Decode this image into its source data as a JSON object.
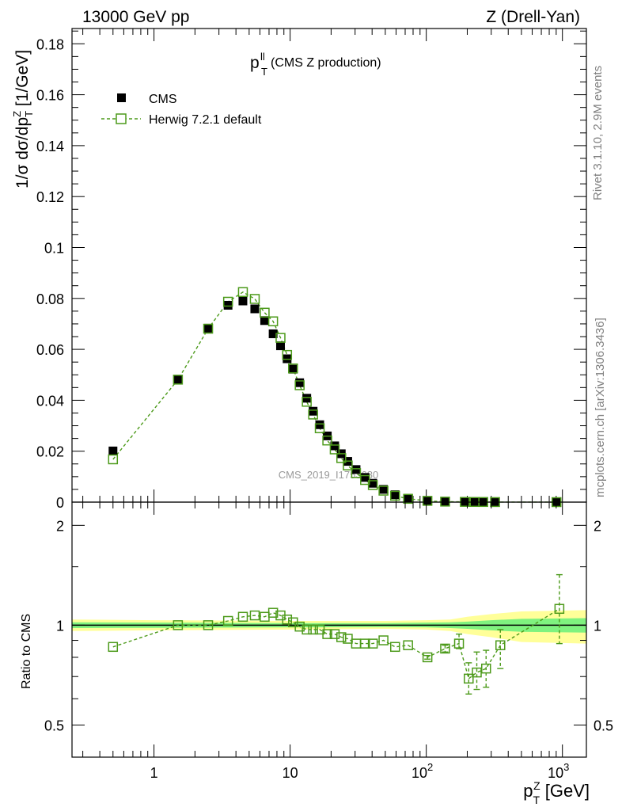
{
  "header": {
    "left": "13000 GeV pp",
    "right": "Z (Drell-Yan)"
  },
  "side_labels": {
    "rivet": "Rivet 3.1.10,  2.9M events",
    "mcplots": "mcplots.cern.ch [arXiv:1306.3436]"
  },
  "watermark": "CMS_2019_I1753680",
  "colors": {
    "data": "#000000",
    "mc": "#4c9a1a",
    "band_outer": "#ffff99",
    "band_inner": "#7ff27f",
    "axis": "#000000"
  },
  "chart_data": [
    {
      "type": "scatter",
      "title": "p_T^ll (CMS Z production)",
      "title_main": "p",
      "title_sup": "ll",
      "title_sub": "T",
      "title_rest": " (CMS Z production)",
      "ylabel": "1/σ dσ/dp_T^Z [1/GeV]",
      "ylabel_parts": {
        "main": "1/σ dσ/dp",
        "sub": "T",
        "sup": "Z",
        "unit": " [1/GeV]"
      },
      "xscale": "log",
      "xlim": [
        0.25,
        1500
      ],
      "ylim": [
        0,
        0.186
      ],
      "yticks": [
        0.02,
        0.04,
        0.06,
        0.08,
        0.1,
        0.12,
        0.14,
        0.16,
        0.18
      ],
      "ytick_labels": [
        "0.02",
        "0.04",
        "0.06",
        "0.08",
        "0.1",
        "0.12",
        "0.14",
        "0.16",
        "0.18"
      ],
      "y0_label": "0",
      "legend": {
        "position": "top-left",
        "entries": [
          "CMS",
          "Herwig 7.2.1 default"
        ]
      },
      "series": [
        {
          "name": "CMS",
          "marker": "filled-square",
          "x": [
            0.5,
            1.5,
            2.5,
            3.5,
            4.5,
            5.5,
            6.5,
            7.5,
            8.5,
            9.5,
            10.5,
            11.75,
            13.25,
            14.75,
            16.5,
            18.75,
            21.25,
            23.75,
            26.5,
            30.5,
            35.5,
            40.5,
            48.5,
            59,
            73.5,
            102,
            137.5,
            192,
            226.5,
            262,
            320,
            905
          ],
          "y": [
            0.0201,
            0.048,
            0.0683,
            0.0773,
            0.079,
            0.0759,
            0.0713,
            0.0661,
            0.0614,
            0.0563,
            0.0522,
            0.0469,
            0.0408,
            0.0357,
            0.0304,
            0.026,
            0.0221,
            0.019,
            0.016,
            0.0128,
            0.0097,
            0.0074,
            0.005,
            0.0029,
            0.0015,
            0.0006,
            0.0003,
            0.00014,
            0.0001,
            8e-05,
            4e-05,
            1e-05
          ]
        },
        {
          "name": "Herwig 7.2.1 default",
          "marker": "open-square",
          "line": "dashed",
          "x": [
            0.5,
            1.5,
            2.5,
            3.5,
            4.5,
            5.5,
            6.5,
            7.5,
            8.5,
            9.5,
            10.5,
            11.75,
            13.25,
            14.75,
            16.5,
            18.75,
            21.25,
            23.75,
            26.5,
            30.5,
            35.5,
            40.5,
            48.5,
            59,
            73.5,
            102,
            137.5,
            192,
            226.5,
            262,
            320,
            905
          ],
          "y": [
            0.0168,
            0.0481,
            0.0681,
            0.0787,
            0.0825,
            0.0798,
            0.0744,
            0.071,
            0.0645,
            0.0578,
            0.0525,
            0.0459,
            0.0394,
            0.0344,
            0.029,
            0.0242,
            0.0207,
            0.0173,
            0.0144,
            0.0114,
            0.0087,
            0.0067,
            0.0045,
            0.0025,
            0.0013,
            0.0005,
            0.0002,
            0.0001,
            7e-05,
            6e-05,
            3e-05,
            1e-05
          ]
        }
      ]
    },
    {
      "type": "scatter",
      "title": "",
      "ylabel": "Ratio to CMS",
      "xlabel": "p_T^Z [GeV]",
      "xlabel_parts": {
        "main": "p",
        "sub": "T",
        "sup": "Z",
        "unit": " [GeV]"
      },
      "xscale": "log",
      "xlim": [
        0.25,
        1500
      ],
      "yscale": "log",
      "ylim": [
        0.4,
        2.35
      ],
      "yticks": [
        0.5,
        1,
        2
      ],
      "ytick_labels": [
        "0.5",
        "1",
        "2"
      ],
      "xticks": [
        1,
        10,
        100,
        1000
      ],
      "xtick_labels": [
        {
          "base": "1",
          "exp": ""
        },
        {
          "base": "10",
          "exp": ""
        },
        {
          "base": "10",
          "exp": "2"
        },
        {
          "base": "10",
          "exp": "3"
        }
      ],
      "reference_line": 1,
      "uncertainty_band": {
        "x": [
          0.25,
          1,
          10,
          50,
          100,
          150,
          200,
          300,
          500,
          1500
        ],
        "outer_lo": [
          0.96,
          0.965,
          0.97,
          0.975,
          0.97,
          0.96,
          0.94,
          0.92,
          0.89,
          0.88
        ],
        "outer_hi": [
          1.04,
          1.035,
          1.03,
          1.03,
          1.035,
          1.04,
          1.06,
          1.08,
          1.1,
          1.11
        ],
        "inner_lo": [
          0.98,
          0.982,
          0.985,
          0.987,
          0.985,
          0.98,
          0.975,
          0.965,
          0.955,
          0.95
        ],
        "inner_hi": [
          1.02,
          1.018,
          1.015,
          1.015,
          1.018,
          1.02,
          1.025,
          1.035,
          1.045,
          1.05
        ]
      },
      "series": [
        {
          "name": "Herwig 7.2.1 default",
          "marker": "open-square",
          "line": "dashed",
          "x": [
            0.5,
            1.5,
            2.5,
            3.5,
            4.5,
            5.5,
            6.5,
            7.5,
            8.5,
            9.5,
            10.5,
            11.75,
            13.25,
            14.75,
            16.5,
            18.75,
            21.25,
            23.75,
            26.5,
            30.5,
            35.5,
            40.5,
            48.5,
            59,
            73.5,
            102,
            137.5,
            174,
            205,
            235,
            275,
            350,
            950
          ],
          "y": [
            0.86,
            1.0,
            1.0,
            1.03,
            1.06,
            1.07,
            1.06,
            1.09,
            1.07,
            1.04,
            1.02,
            0.99,
            0.97,
            0.97,
            0.97,
            0.94,
            0.94,
            0.92,
            0.91,
            0.88,
            0.88,
            0.88,
            0.9,
            0.86,
            0.87,
            0.8,
            0.85,
            0.88,
            0.69,
            0.72,
            0.74,
            0.87,
            1.12
          ],
          "err_lo": [
            0,
            0,
            0,
            0,
            0,
            0,
            0,
            0,
            0,
            0,
            0,
            0,
            0,
            0,
            0,
            0,
            0,
            0,
            0,
            0,
            0,
            0,
            0,
            0,
            0,
            0.01,
            0.02,
            0.03,
            0.07,
            0.08,
            0.09,
            0.13,
            0.24
          ],
          "err_hi": [
            0,
            0,
            0,
            0,
            0,
            0,
            0,
            0,
            0,
            0,
            0,
            0,
            0,
            0,
            0,
            0,
            0,
            0,
            0,
            0,
            0,
            0,
            0,
            0,
            0,
            0.01,
            0.02,
            0.06,
            0.08,
            0.11,
            0.1,
            0.1,
            0.3
          ]
        }
      ]
    }
  ]
}
